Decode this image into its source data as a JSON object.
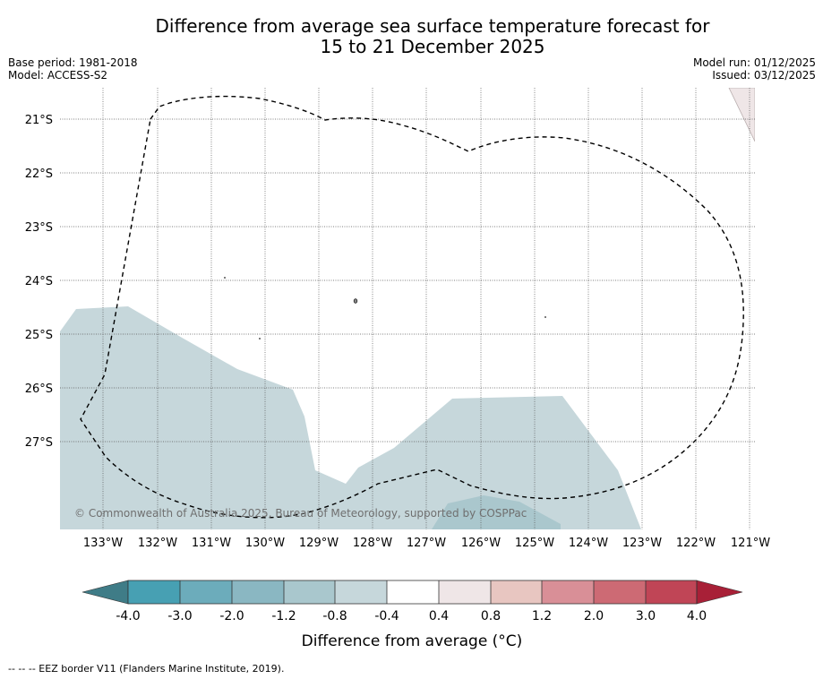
{
  "title": {
    "line1": "Difference from average sea surface temperature forecast for",
    "line2": "15 to 21 December 2025"
  },
  "info": {
    "base_period": "Base period: 1981-2018",
    "model": "Model: ACCESS-S2",
    "model_run": "Model run: 01/12/2025",
    "issued": "Issued: 03/12/2025"
  },
  "map": {
    "lat_labels": [
      "21°S",
      "22°S",
      "23°S",
      "24°S",
      "25°S",
      "26°S",
      "27°S"
    ],
    "lon_labels": [
      "133°W",
      "132°W",
      "131°W",
      "130°W",
      "129°W",
      "128°W",
      "127°W",
      "126°W",
      "125°W",
      "124°W",
      "123°W",
      "122°W",
      "121°W"
    ],
    "copyright": "© Commonwealth of Australia 2025, Bureau of Meteorology, supported by COSPPac",
    "anomaly_class": "-0.8 to -0.4"
  },
  "colorbar": {
    "ticks": [
      "-4.0",
      "-3.0",
      "-2.0",
      "-1.2",
      "-0.8",
      "-0.4",
      "0.4",
      "0.8",
      "1.2",
      "2.0",
      "3.0",
      "4.0"
    ],
    "colors": [
      "#3f7c87",
      "#47a0b3",
      "#6cacbb",
      "#8ab7c2",
      "#a9c7cd",
      "#c6d7db",
      "#ffffff",
      "#efe6e7",
      "#e8c6c1",
      "#d98f97",
      "#cd6a74",
      "#c04556",
      "#a82037"
    ],
    "label": "Difference from average (°C)"
  },
  "footer": "--  --  -- EEZ border V11 (Flanders Marine Institute, 2019)."
}
